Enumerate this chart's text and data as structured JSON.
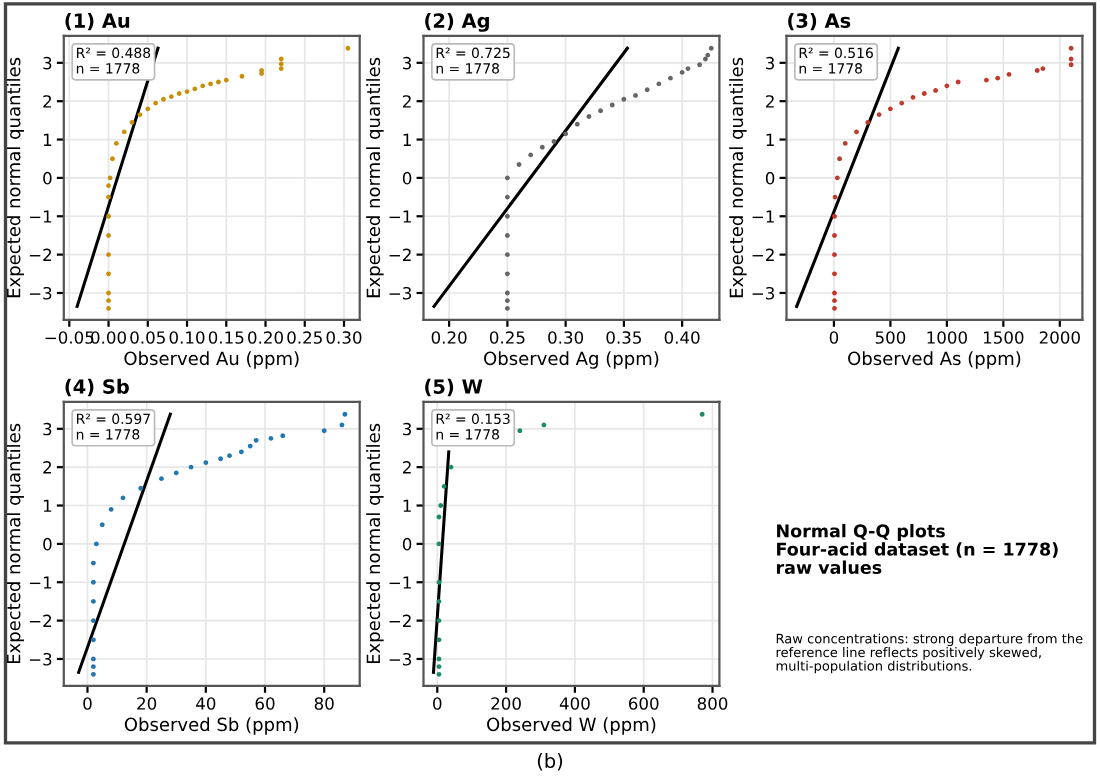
{
  "chart_data": [
    {
      "type": "scatter",
      "title": "(1) Au",
      "xlabel": "Observed Au (ppm)",
      "ylabel": "Expected normal quantiles",
      "xlim": [
        -0.057,
        0.32
      ],
      "ylim": [
        -3.7,
        3.7
      ],
      "xticks": [
        {
          "value": -0.05,
          "label": "−0.05"
        },
        {
          "value": 0,
          "label": "0.00"
        },
        {
          "value": 0.05,
          "label": "0.05"
        },
        {
          "value": 0.1,
          "label": "0.10"
        },
        {
          "value": 0.15,
          "label": "0.15"
        },
        {
          "value": 0.2,
          "label": "0.20"
        },
        {
          "value": 0.25,
          "label": "0.25"
        },
        {
          "value": 0.3,
          "label": "0.30"
        }
      ],
      "yticks": [
        {
          "value": -3,
          "label": "−3"
        },
        {
          "value": -2,
          "label": "−2"
        },
        {
          "value": -1,
          "label": "−1"
        },
        0,
        1,
        2,
        3
      ],
      "grid": true,
      "annotations": [
        "R² = 0.488",
        "n = 1778"
      ],
      "series": [
        {
          "type": "scatter",
          "marker": "circle",
          "color": "#c8900a",
          "x": [
            0,
            0,
            0,
            0,
            0,
            0,
            0,
            0,
            0,
            0.002,
            0.005,
            0.01,
            0.02,
            0.03,
            0.04,
            0.05,
            0.06,
            0.07,
            0.08,
            0.09,
            0.1,
            0.11,
            0.12,
            0.13,
            0.14,
            0.15,
            0.17,
            0.195,
            0.195,
            0.22,
            0.22,
            0.22,
            0.305
          ],
          "values": [
            -3.4,
            -3.2,
            -3,
            -2.5,
            -2,
            -1.5,
            -1,
            -0.5,
            -0.2,
            0,
            0.5,
            0.9,
            1.2,
            1.45,
            1.65,
            1.8,
            1.95,
            2.05,
            2.12,
            2.2,
            2.25,
            2.32,
            2.4,
            2.45,
            2.5,
            2.55,
            2.65,
            2.72,
            2.8,
            2.85,
            2.97,
            3.1,
            3.38
          ]
        },
        {
          "type": "line",
          "color": "#000000",
          "x": [
            -0.04,
            0.063
          ],
          "values": [
            -3.35,
            3.38
          ]
        }
      ]
    },
    {
      "type": "scatter",
      "title": "(2) Ag",
      "xlabel": "Observed Ag (ppm)",
      "ylabel": "Expected normal quantiles",
      "xlim": [
        0.178,
        0.432
      ],
      "ylim": [
        -3.7,
        3.7
      ],
      "xticks": [
        {
          "value": 0.2,
          "label": "0.20"
        },
        {
          "value": 0.25,
          "label": "0.25"
        },
        {
          "value": 0.3,
          "label": "0.30"
        },
        {
          "value": 0.35,
          "label": "0.35"
        },
        {
          "value": 0.4,
          "label": "0.40"
        }
      ],
      "yticks": [
        {
          "value": -3,
          "label": "−3"
        },
        {
          "value": -2,
          "label": "−2"
        },
        {
          "value": -1,
          "label": "−1"
        },
        0,
        1,
        2,
        3
      ],
      "grid": true,
      "annotations": [
        "R² = 0.725",
        "n = 1778"
      ],
      "series": [
        {
          "type": "scatter",
          "marker": "circle",
          "color": "#666666",
          "x": [
            0.25,
            0.25,
            0.25,
            0.25,
            0.25,
            0.25,
            0.25,
            0.25,
            0.25,
            0.26,
            0.27,
            0.28,
            0.29,
            0.3,
            0.31,
            0.32,
            0.33,
            0.34,
            0.35,
            0.36,
            0.37,
            0.38,
            0.39,
            0.4,
            0.405,
            0.415,
            0.42,
            0.422,
            0.425
          ],
          "values": [
            -3.4,
            -3.2,
            -3,
            -2.5,
            -2,
            -1.5,
            -1,
            -0.5,
            0,
            0.35,
            0.6,
            0.8,
            0.95,
            1.15,
            1.4,
            1.6,
            1.75,
            1.9,
            2.05,
            2.15,
            2.3,
            2.45,
            2.6,
            2.75,
            2.85,
            2.95,
            3.1,
            3.2,
            3.38
          ]
        },
        {
          "type": "line",
          "color": "#000000",
          "x": [
            0.187,
            0.353
          ],
          "values": [
            -3.35,
            3.38
          ]
        }
      ]
    },
    {
      "type": "scatter",
      "title": "(3) As",
      "xlabel": "Observed As (ppm)",
      "ylabel": "Expected normal quantiles",
      "xlim": [
        -420,
        2200
      ],
      "ylim": [
        -3.7,
        3.7
      ],
      "xticks": [
        0,
        500,
        1000,
        1500,
        2000
      ],
      "yticks": [
        {
          "value": -3,
          "label": "−3"
        },
        {
          "value": -2,
          "label": "−2"
        },
        {
          "value": -1,
          "label": "−1"
        },
        0,
        1,
        2,
        3
      ],
      "grid": true,
      "annotations": [
        "R² = 0.516",
        "n = 1778"
      ],
      "series": [
        {
          "type": "scatter",
          "marker": "circle",
          "color": "#c0392b",
          "x": [
            5,
            5,
            5,
            5,
            5,
            5,
            5,
            10,
            30,
            50,
            100,
            200,
            300,
            400,
            500,
            600,
            700,
            800,
            900,
            1000,
            1100,
            1350,
            1450,
            1550,
            1800,
            1850,
            2100,
            2100,
            2100
          ],
          "values": [
            -3.4,
            -3.2,
            -3,
            -2.5,
            -2,
            -1.5,
            -1,
            -0.5,
            0,
            0.5,
            0.9,
            1.2,
            1.45,
            1.65,
            1.8,
            1.95,
            2.1,
            2.2,
            2.28,
            2.4,
            2.5,
            2.55,
            2.6,
            2.7,
            2.8,
            2.85,
            2.95,
            3.1,
            3.38
          ]
        },
        {
          "type": "line",
          "color": "#000000",
          "x": [
            -330,
            570
          ],
          "values": [
            -3.35,
            3.38
          ]
        }
      ]
    },
    {
      "type": "scatter",
      "title": "(4) Sb",
      "xlabel": "Observed Sb (ppm)",
      "ylabel": "Expected normal quantiles",
      "xlim": [
        -8,
        92
      ],
      "ylim": [
        -3.7,
        3.7
      ],
      "xticks": [
        0,
        20,
        40,
        60,
        80
      ],
      "yticks": [
        {
          "value": -3,
          "label": "−3"
        },
        {
          "value": -2,
          "label": "−2"
        },
        {
          "value": -1,
          "label": "−1"
        },
        0,
        1,
        2,
        3
      ],
      "grid": true,
      "annotations": [
        "R² = 0.597",
        "n = 1778"
      ],
      "series": [
        {
          "type": "scatter",
          "marker": "circle",
          "color": "#1f77b4",
          "x": [
            2,
            2,
            2,
            2,
            2,
            2,
            2,
            2,
            3,
            5,
            8,
            12,
            18,
            25,
            30,
            35,
            40,
            45,
            48,
            52,
            55,
            57,
            62,
            66,
            80,
            86,
            87
          ],
          "values": [
            -3.4,
            -3.2,
            -3,
            -2.5,
            -2,
            -1.5,
            -1,
            -0.5,
            0,
            0.5,
            0.9,
            1.2,
            1.45,
            1.7,
            1.85,
            2,
            2.12,
            2.22,
            2.3,
            2.4,
            2.55,
            2.7,
            2.75,
            2.82,
            2.95,
            3.1,
            3.38
          ]
        },
        {
          "type": "line",
          "color": "#000000",
          "x": [
            -3,
            28
          ],
          "values": [
            -3.35,
            3.38
          ]
        }
      ]
    },
    {
      "type": "scatter",
      "title": "(5) W",
      "xlabel": "Observed W (ppm)",
      "ylabel": "Expected normal quantiles",
      "xlim": [
        -40,
        820
      ],
      "ylim": [
        -3.7,
        3.7
      ],
      "xticks": [
        0,
        200,
        400,
        600,
        800
      ],
      "yticks": [
        {
          "value": -3,
          "label": "−3"
        },
        {
          "value": -2,
          "label": "−2"
        },
        {
          "value": -1,
          "label": "−1"
        },
        0,
        1,
        2,
        3
      ],
      "grid": true,
      "annotations": [
        "R² = 0.153",
        "n = 1778"
      ],
      "series": [
        {
          "type": "scatter",
          "marker": "circle",
          "color": "#1a8a6a",
          "x": [
            5,
            5,
            5,
            5,
            5,
            5,
            5,
            5,
            5,
            10,
            20,
            40,
            240,
            310,
            770
          ],
          "values": [
            -3.4,
            -3.2,
            -3,
            -2.5,
            -2,
            -1.5,
            -1,
            0,
            0.7,
            1,
            1.5,
            2,
            2.95,
            3.1,
            3.38
          ]
        },
        {
          "type": "line",
          "color": "#000000",
          "x": [
            -11,
            33.4
          ],
          "values": [
            -3.35,
            2.4
          ]
        }
      ]
    },
    {
      "type": "other",
      "title": "Normal Q-Q plots\nFour-acid dataset (n = 1778)\nraw values",
      "annotations": [
        "Raw concentrations: strong departure from the\nreference line reflects positively skewed,\nmulti-population distributions.",
        "(b)"
      ]
    }
  ]
}
